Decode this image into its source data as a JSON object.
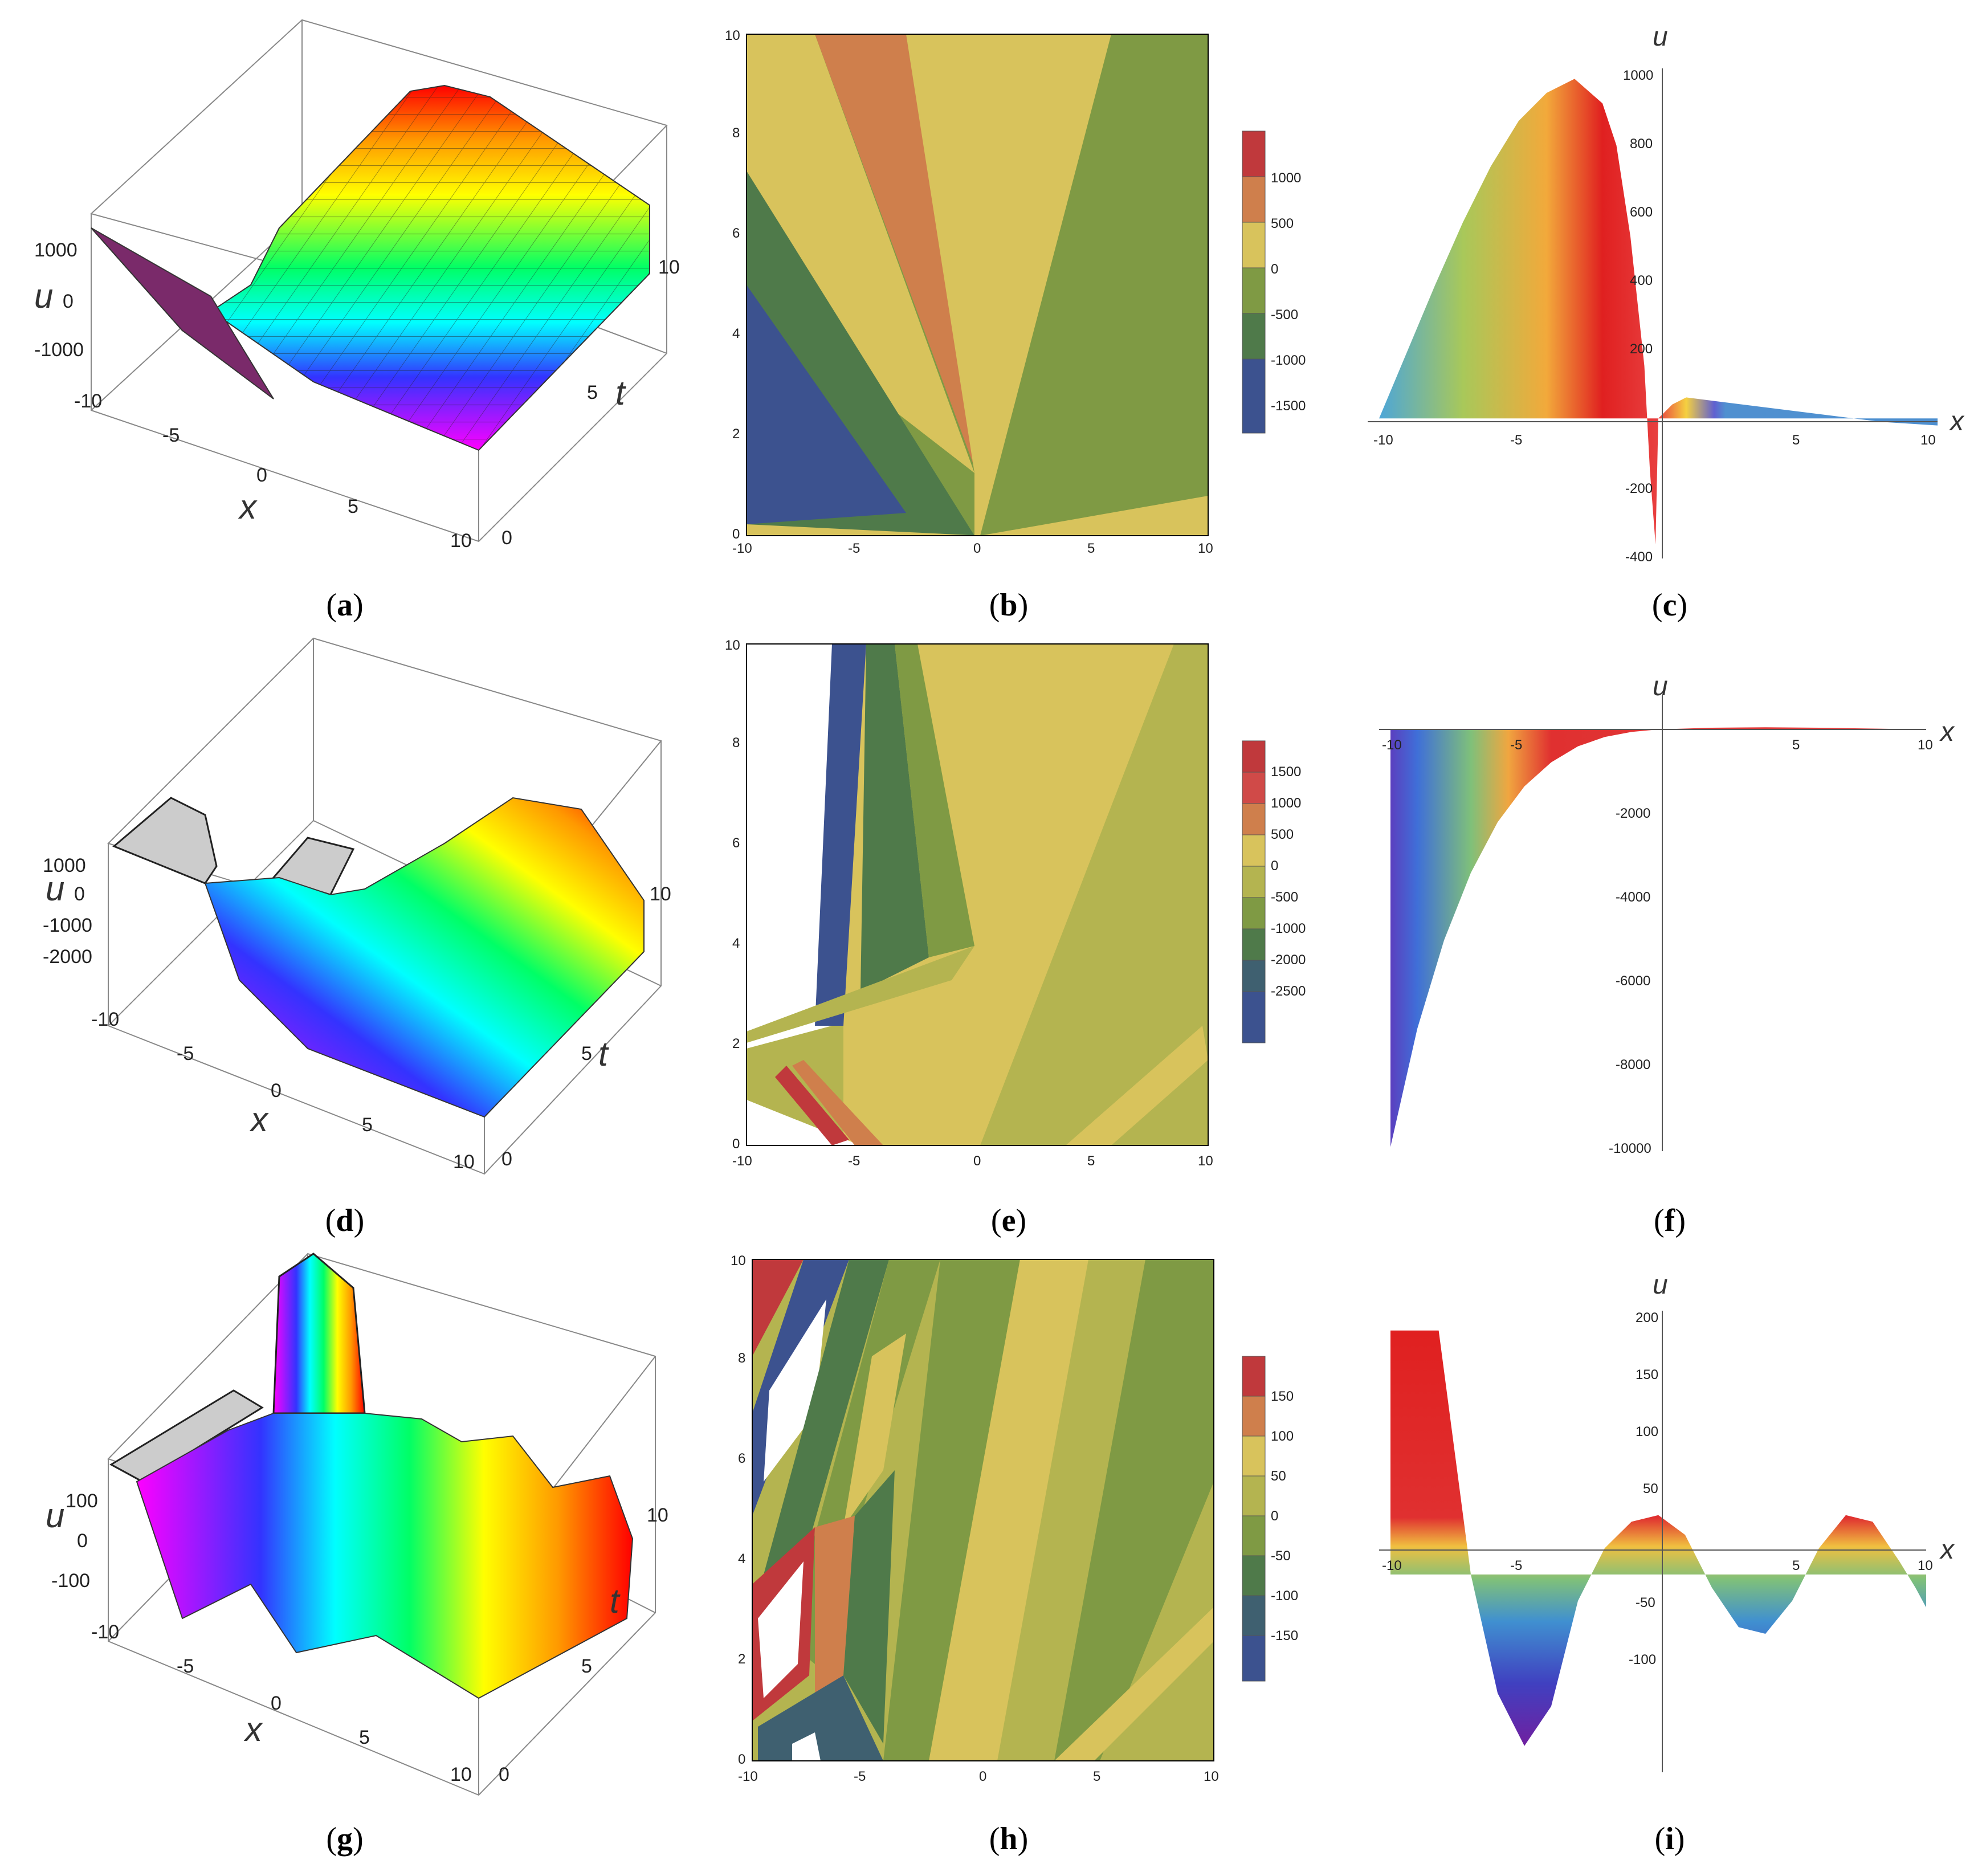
{
  "panels": [
    {
      "id": "a",
      "caption": "a",
      "type": "surface3d",
      "axes": {
        "x": "x",
        "t": "t",
        "u": "u"
      },
      "x_ticks": [
        "-10",
        "-5",
        "0",
        "5",
        "10"
      ],
      "t_ticks": [
        "0",
        "5",
        "10"
      ],
      "u_ticks": [
        "1000",
        "0",
        "-1000"
      ]
    },
    {
      "id": "b",
      "caption": "b",
      "type": "contour",
      "x_ticks": [
        "-10",
        "-5",
        "0",
        "5",
        "10"
      ],
      "y_ticks": [
        "0",
        "2",
        "4",
        "6",
        "8",
        "10"
      ],
      "legend": [
        "1000",
        "500",
        "0",
        "-500",
        "-1000",
        "-1500"
      ]
    },
    {
      "id": "c",
      "caption": "c",
      "type": "line",
      "xlabel": "x",
      "ylabel": "u",
      "x_ticks": [
        "-10",
        "-5",
        "5",
        "10"
      ],
      "y_ticks": [
        "1000",
        "800",
        "600",
        "400",
        "200",
        "-200",
        "-400"
      ]
    },
    {
      "id": "d",
      "caption": "d",
      "type": "surface3d",
      "axes": {
        "x": "x",
        "t": "t",
        "u": "u"
      },
      "x_ticks": [
        "-10",
        "-5",
        "0",
        "5",
        "10"
      ],
      "t_ticks": [
        "0",
        "5",
        "10"
      ],
      "u_ticks": [
        "1000",
        "0",
        "-1000",
        "-2000"
      ]
    },
    {
      "id": "e",
      "caption": "e",
      "type": "contour",
      "x_ticks": [
        "-10",
        "-5",
        "0",
        "5",
        "10"
      ],
      "y_ticks": [
        "0",
        "2",
        "4",
        "6",
        "8",
        "10"
      ],
      "legend": [
        "1500",
        "1000",
        "500",
        "0",
        "-500",
        "-1000",
        "-2000",
        "-2500"
      ]
    },
    {
      "id": "f",
      "caption": "f",
      "type": "line",
      "xlabel": "x",
      "ylabel": "u",
      "x_ticks": [
        "-10",
        "-5",
        "5",
        "10"
      ],
      "y_ticks": [
        "-2000",
        "-4000",
        "-6000",
        "-8000",
        "-10000"
      ]
    },
    {
      "id": "g",
      "caption": "g",
      "type": "surface3d",
      "axes": {
        "x": "x",
        "t": "t",
        "u": "u"
      },
      "x_ticks": [
        "-10",
        "-5",
        "0",
        "5",
        "10"
      ],
      "t_ticks": [
        "0",
        "5",
        "10"
      ],
      "u_ticks": [
        "100",
        "0",
        "-100"
      ]
    },
    {
      "id": "h",
      "caption": "h",
      "type": "contour",
      "x_ticks": [
        "-10",
        "-5",
        "0",
        "5",
        "10"
      ],
      "y_ticks": [
        "0",
        "2",
        "4",
        "6",
        "8",
        "10"
      ],
      "legend": [
        "150",
        "100",
        "50",
        "0",
        "-50",
        "-100",
        "-150"
      ]
    },
    {
      "id": "i",
      "caption": "i",
      "type": "line",
      "xlabel": "x",
      "ylabel": "u",
      "x_ticks": [
        "-10",
        "-5",
        "5",
        "10"
      ],
      "y_ticks": [
        "200",
        "150",
        "100",
        "50",
        "-50",
        "-100"
      ]
    }
  ],
  "colors": {
    "contour_red": "#c0393c",
    "contour_orange": "#cf7f4c",
    "contour_yellow": "#d8c35c",
    "contour_olive": "#b4b450",
    "contour_green": "#7f9a44",
    "contour_dkgreen": "#4f7a4a",
    "contour_teal": "#3f6070",
    "contour_blue": "#3c528f"
  },
  "chart_data": [
    {
      "panel": "c",
      "type": "area",
      "xlabel": "x",
      "ylabel": "u",
      "xlim": [
        -10,
        10
      ],
      "ylim": [
        -400,
        1000
      ],
      "x": [
        -10,
        -9,
        -8,
        -7,
        -6,
        -5,
        -4,
        -3,
        -2,
        -1.5,
        -1,
        -0.5,
        -0.3,
        -0.1,
        0,
        0.5,
        1,
        2,
        4,
        6,
        8,
        10
      ],
      "y": [
        0,
        190,
        380,
        560,
        720,
        850,
        930,
        970,
        900,
        780,
        520,
        150,
        -150,
        -360,
        0,
        40,
        60,
        50,
        30,
        10,
        -10,
        -20
      ]
    },
    {
      "panel": "f",
      "type": "area",
      "xlabel": "x",
      "ylabel": "u",
      "xlim": [
        -10,
        10
      ],
      "ylim": [
        -10000,
        0
      ],
      "x": [
        -10,
        -9,
        -8,
        -7,
        -6,
        -5,
        -4,
        -3,
        -2,
        -1,
        0,
        2,
        4,
        6,
        8,
        10
      ],
      "y": [
        -9900,
        -7100,
        -5000,
        -3400,
        -2200,
        -1350,
        -780,
        -400,
        -180,
        -60,
        0,
        40,
        50,
        40,
        20,
        0
      ]
    },
    {
      "panel": "i",
      "type": "area",
      "xlabel": "x",
      "ylabel": "u",
      "xlim": [
        -10,
        10
      ],
      "ylim": [
        -150,
        200
      ],
      "x": [
        -10,
        -8.2,
        -7,
        -6,
        -5,
        -4,
        -3,
        -2,
        -1,
        0,
        1,
        2,
        3,
        4,
        5,
        6,
        7,
        8,
        9,
        9.6,
        10
      ],
      "y": [
        185,
        185,
        0,
        -90,
        -130,
        -100,
        -20,
        20,
        40,
        45,
        30,
        -10,
        -40,
        -45,
        -20,
        20,
        45,
        40,
        10,
        -10,
        -25
      ]
    }
  ]
}
